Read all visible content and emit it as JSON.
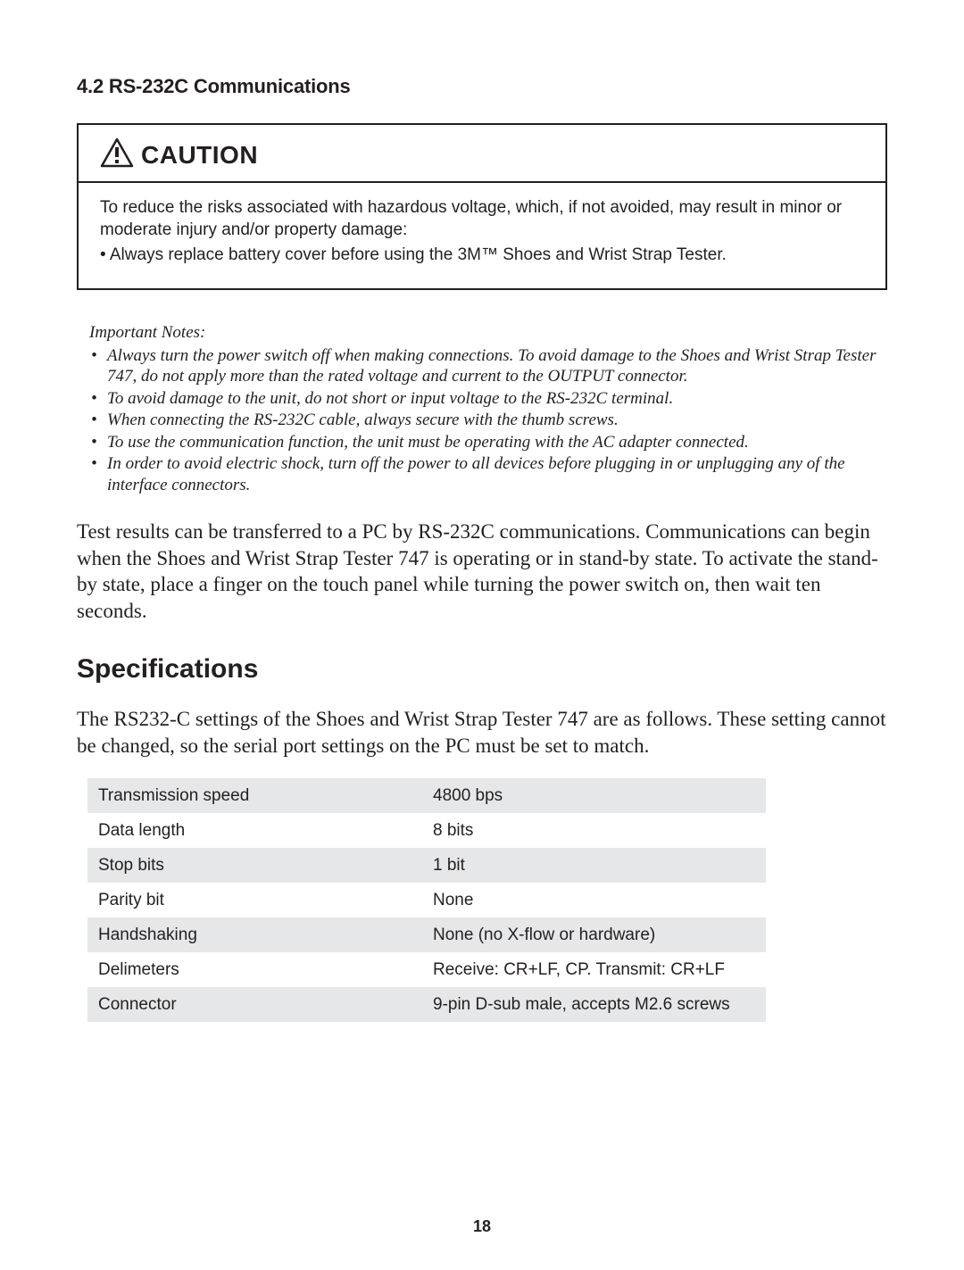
{
  "section_heading": "4.2 RS-232C Communications",
  "caution": {
    "title": "CAUTION",
    "body_text": "To reduce the risks associated with hazardous voltage, which, if not avoided, may result in minor or moderate injury and/or property damage:",
    "bullet": "• Always replace battery cover before using the 3M™ Shoes and Wrist Strap Tester.",
    "icon_stroke": "#231f20",
    "icon_fill": "#ffffff"
  },
  "notes": {
    "heading": "Important Notes:",
    "items": [
      "Always turn the power switch off when making connections. To avoid damage to the Shoes and Wrist Strap Tester 747, do not apply more than the rated voltage and current to the OUTPUT connector.",
      "To avoid damage to the unit, do not short or input voltage to the RS-232C terminal.",
      "When connecting the RS-232C cable, always secure with the thumb screws.",
      "To use the communication function, the unit must be operating with the AC adapter connected.",
      "In order to avoid electric shock, turn off the power to all devices before plugging in or unplugging any of the interface connectors."
    ]
  },
  "body_paragraph": "Test results can be transferred to a PC by RS-232C communications. Communications can begin when the Shoes and Wrist Strap Tester 747 is operating or in stand-by state. To activate the stand-by state, place a finger on the touch panel while turning the power switch on, then wait ten seconds.",
  "specifications": {
    "heading": "Specifications",
    "intro": "The RS232-C settings of the Shoes and Wrist Strap Tester 747 are as follows. These setting cannot be changed, so the serial port settings on the PC must be set to match.",
    "table": {
      "row_colors": [
        "#e6e7e8",
        "#ffffff"
      ],
      "rows": [
        {
          "label": "Transmission speed",
          "value": "4800 bps"
        },
        {
          "label": "Data length",
          "value": "8 bits"
        },
        {
          "label": "Stop bits",
          "value": "1 bit"
        },
        {
          "label": "Parity bit",
          "value": "None"
        },
        {
          "label": "Handshaking",
          "value": "None (no X-flow or hardware)"
        },
        {
          "label": "Delimeters",
          "value": "Receive: CR+LF, CP. Transmit: CR+LF"
        },
        {
          "label": "Connector",
          "value": "9-pin D-sub male, accepts M2.6 screws"
        }
      ]
    }
  },
  "page_number": "18"
}
